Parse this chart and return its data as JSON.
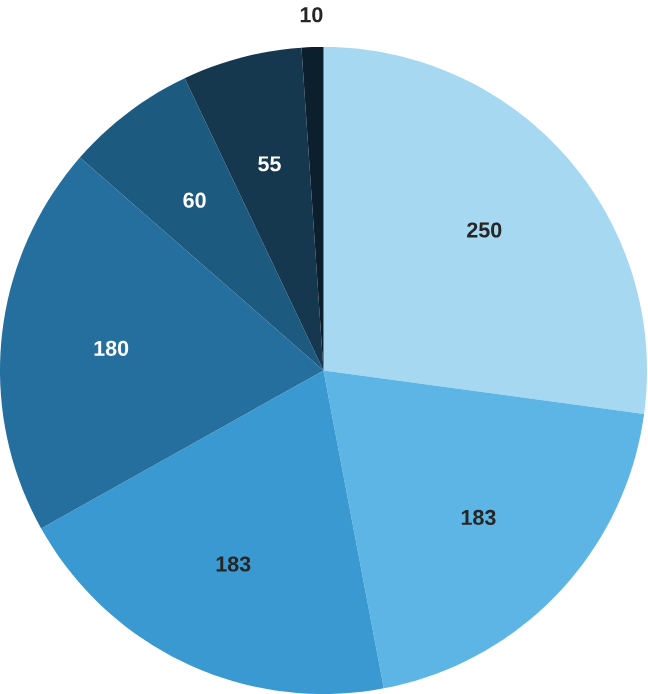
{
  "chart_data": {
    "type": "pie",
    "categories": [
      null,
      null,
      null,
      null,
      null,
      null,
      null
    ],
    "values": [
      250,
      183,
      183,
      180,
      60,
      55,
      10
    ],
    "colors": [
      "#a6d8f1",
      "#5cb5e5",
      "#3999d0",
      "#246f9e",
      "#1c5a80",
      "#15384f",
      "#0c1f2d"
    ],
    "data_labels": true
  }
}
